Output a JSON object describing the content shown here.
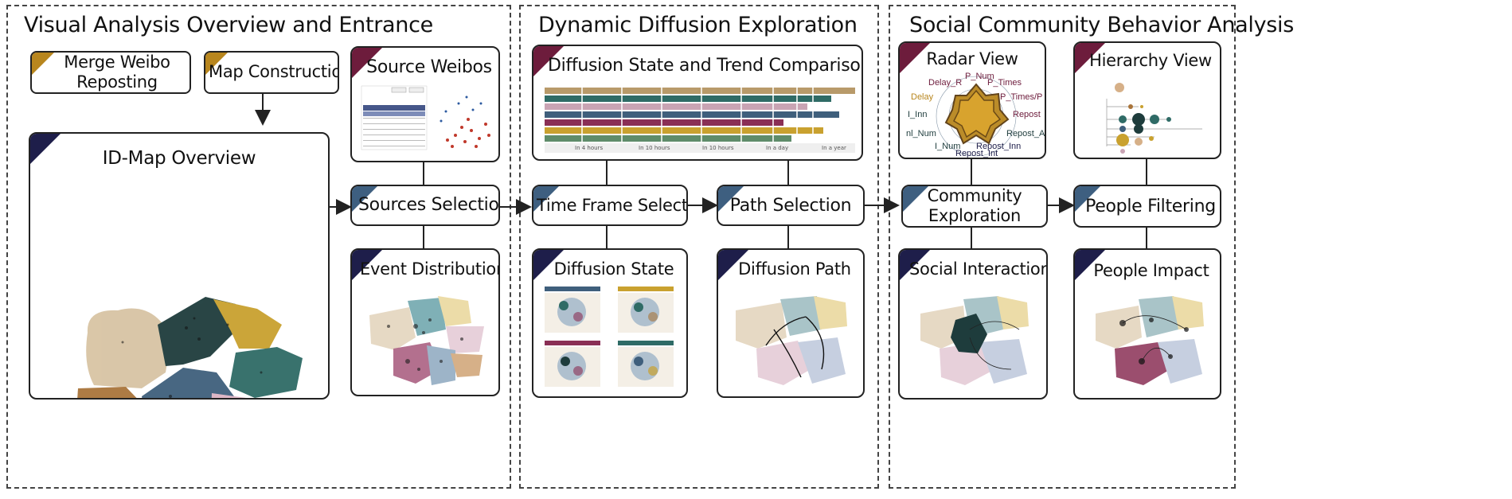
{
  "sections": {
    "overview": "Visual Analysis Overview and Entrance",
    "diffusion": "Dynamic Diffusion Exploration",
    "social": "Social Community Behavior Analysis"
  },
  "boxes": {
    "merge": "Merge Weibo Reposting Hierarchies",
    "map_construction": "Map Construction",
    "id_map": "ID-Map Overview",
    "source_weibos": "Source Weibos",
    "sources_selection": "Sources Selection",
    "event_distribution": "Event Distribution",
    "diffusion_trend": "Diffusion State and Trend Comparison",
    "time_frame": "Time Frame Selection",
    "path_selection": "Path Selection",
    "diffusion_state": "Diffusion State",
    "diffusion_path": "Diffusion Path",
    "radar_view": "Radar View",
    "hierarchy_view": "Hierarchy View",
    "community_exploration": "Community Exploration",
    "people_filtering": "People Filtering",
    "social_interaction": "Social Interaction",
    "people_impact": "People Impact"
  },
  "trend_axis": [
    "In 4 hours",
    "In 10 hours",
    "In 10 hours",
    "In a day",
    "In a year"
  ],
  "radar_labels": {
    "top": "P_Num",
    "delay": "Delay_R",
    "ptimes": "P_Times",
    "ptimesp": "P_Times/P",
    "repost": "Repost",
    "repost_a": "Repost_A",
    "repost_inn": "Repost_Inn",
    "repost_int": "Repost_Int",
    "i_num": "I_Num",
    "nl_num": "nl_Num",
    "i_inn": "I_Inn",
    "delay_left": "Delay"
  },
  "table_buttons": [
    "Select all",
    "Select all"
  ],
  "table_headers": [
    "Source",
    "Weibo",
    "More"
  ],
  "colors": {
    "gold": "#b8861e",
    "navy": "#1e1e4a",
    "maroon": "#6d1c3c",
    "blue": "#3e5f80",
    "tan": "#d8c4a4",
    "brown": "#a9743a",
    "darkteal": "#1e3c3c",
    "teal": "#2f6b66",
    "slate": "#3f5f7c",
    "wine": "#8a2f55",
    "pink": "#dcb4c4",
    "mustard": "#c9a12f"
  }
}
